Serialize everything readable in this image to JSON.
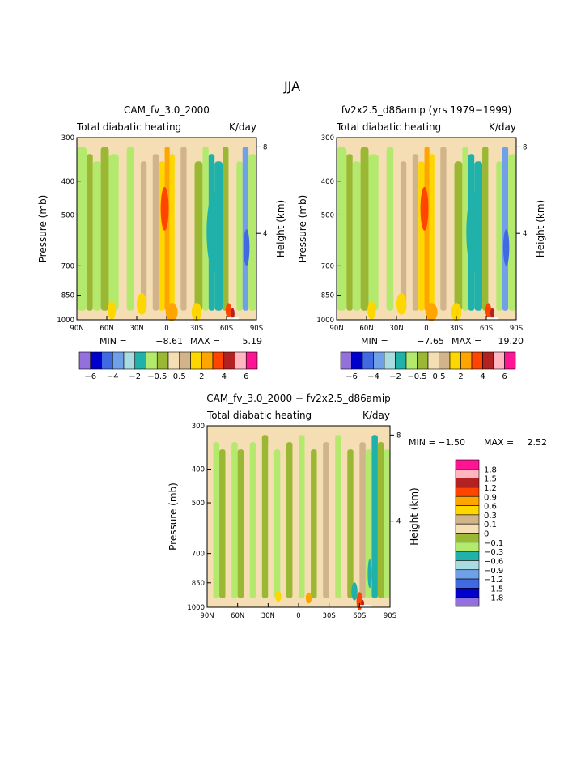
{
  "page": {
    "season_title": "JJA"
  },
  "colors": {
    "scale": [
      "#9370db",
      "#0000cd",
      "#4169e1",
      "#6fa0e8",
      "#a8dce0",
      "#20b2aa",
      "#b3ea6e",
      "#9ab833",
      "#f5deb3",
      "#d2b48c",
      "#ffd700",
      "#ffa500",
      "#ff4500",
      "#b22222",
      "#ffb6c1",
      "#ff1493"
    ],
    "diff_scale": [
      "#9370db",
      "#0000cd",
      "#4169e1",
      "#6fa0e8",
      "#a8dce0",
      "#20b2aa",
      "#b3ea6e",
      "#9ab833",
      "#f5deb3",
      "#d2b48c",
      "#ffd700",
      "#ffa500",
      "#ff4500",
      "#b22222",
      "#ffb6c1",
      "#ff1493"
    ]
  },
  "chart_data": [
    {
      "type": "heatmap",
      "title": "CAM_fv_3.0_2000",
      "subtitle_left": "Total diabatic heating",
      "subtitle_right": "K/day",
      "xlabel": "",
      "ylabel": "Pressure (mb)",
      "ylabel_right": "Height (km)",
      "x_ticks": [
        "90N",
        "60N",
        "30N",
        "0",
        "30S",
        "60S",
        "90S"
      ],
      "y_ticks": [
        "300",
        "400",
        "500",
        "700",
        "850",
        "1000"
      ],
      "y_ticks_right": [
        "8",
        "4"
      ],
      "xlim": [
        90,
        -90
      ],
      "ylim": [
        1000,
        300
      ],
      "min_label": "MIN =",
      "min_value": "−8.61",
      "max_label": "MAX =",
      "max_value": "5.19",
      "colorbar_labels": [
        "−6",
        "−4",
        "−2",
        "−0.5",
        "0.5",
        "2",
        "4",
        "6"
      ]
    },
    {
      "type": "heatmap",
      "title": "fv2x2.5_d86amip (yrs 1979−1999)",
      "subtitle_left": "Total diabatic heating",
      "subtitle_right": "K/day",
      "xlabel": "",
      "ylabel": "Pressure (mb)",
      "ylabel_right": "Height (km)",
      "x_ticks": [
        "90N",
        "60N",
        "30N",
        "0",
        "30S",
        "60S",
        "90S"
      ],
      "y_ticks": [
        "300",
        "400",
        "500",
        "700",
        "850",
        "1000"
      ],
      "y_ticks_right": [
        "8",
        "4"
      ],
      "xlim": [
        90,
        -90
      ],
      "ylim": [
        1000,
        300
      ],
      "min_label": "MIN =",
      "min_value": "−7.65",
      "max_label": "MAX =",
      "max_value": "19.20",
      "colorbar_labels": [
        "−6",
        "−4",
        "−2",
        "−0.5",
        "0.5",
        "2",
        "4",
        "6"
      ]
    },
    {
      "type": "heatmap",
      "title": "CAM_fv_3.0_2000 − fv2x2.5_d86amip",
      "subtitle_left": "Total diabatic heating",
      "subtitle_right": "K/day",
      "xlabel": "",
      "ylabel": "Pressure (mb)",
      "ylabel_right": "Height (km)",
      "x_ticks": [
        "90N",
        "60N",
        "30N",
        "0",
        "30S",
        "60S",
        "90S"
      ],
      "y_ticks": [
        "300",
        "400",
        "500",
        "700",
        "850",
        "1000"
      ],
      "y_ticks_right": [
        "8",
        "4"
      ],
      "xlim": [
        90,
        -90
      ],
      "ylim": [
        1000,
        300
      ],
      "min_label": "MIN =",
      "min_value": "−1.50",
      "max_label": "MAX =",
      "max_value": "2.52",
      "colorbar_labels": [
        "1.8",
        "1.5",
        "1.2",
        "0.9",
        "0.6",
        "0.3",
        "0.1",
        "0",
        "−0.1",
        "−0.3",
        "−0.6",
        "−0.9",
        "−1.2",
        "−1.5",
        "−1.8"
      ]
    }
  ]
}
